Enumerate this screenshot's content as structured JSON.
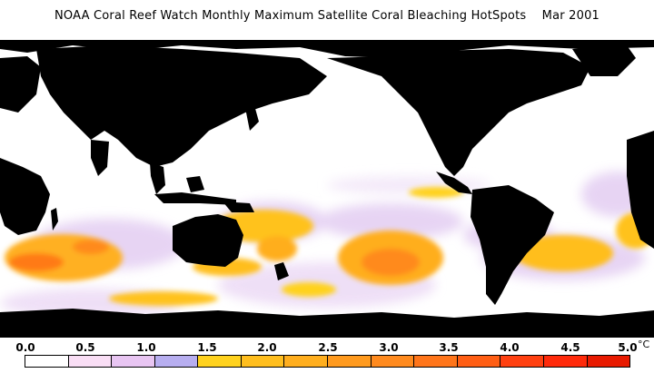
{
  "title": "NOAA Coral Reef Watch Monthly Maximum Satellite Coral Bleaching HotSpots    Mar 2001",
  "map": {
    "land_color": "#000000",
    "ocean_color": "#ffffff"
  },
  "legend": {
    "tick_labels": [
      "0.0",
      "0.5",
      "1.0",
      "1.5",
      "2.0",
      "2.5",
      "3.0",
      "3.5",
      "4.0",
      "4.5",
      "5.0"
    ],
    "unit": "°C",
    "colors": [
      "#ffffff",
      "#f9def5",
      "#e8c5f2",
      "#b7aef0",
      "#ffd21e",
      "#ffbe1e",
      "#ffae1e",
      "#ff9a1e",
      "#ff8a1e",
      "#ff751a",
      "#ff5e14",
      "#ff4010",
      "#ff2a0a",
      "#e81a00"
    ]
  }
}
